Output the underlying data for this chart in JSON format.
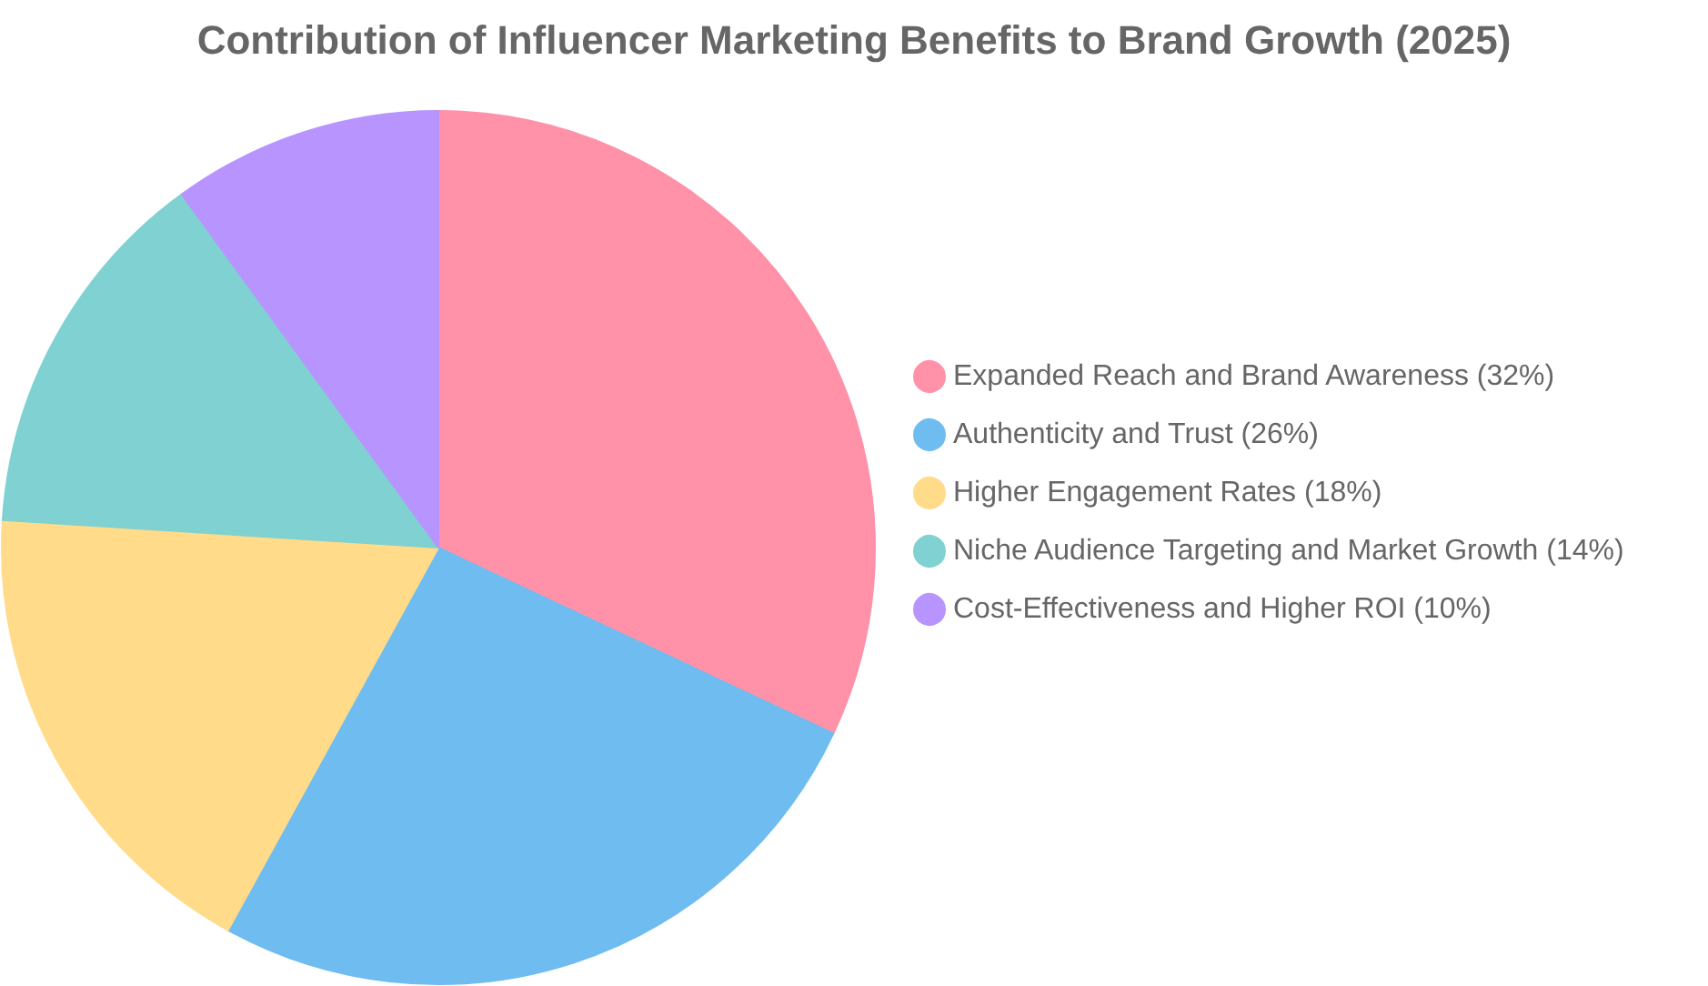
{
  "chart_data": {
    "type": "pie",
    "title": "Contribution of Influencer Marketing Benefits to Brand Growth (2025)",
    "categories": [
      "Expanded Reach and Brand Awareness (32%)",
      "Authenticity and Trust (26%)",
      "Higher Engagement Rates (18%)",
      "Niche Audience Targeting and Market Growth (14%)",
      "Cost-Effectiveness and Higher ROI (10%)"
    ],
    "values": [
      32,
      26,
      18,
      14,
      10
    ],
    "colors": [
      "#ff91a8",
      "#6fbcf0",
      "#ffdb8a",
      "#80d1d1",
      "#b894ff"
    ],
    "legend": "right"
  }
}
